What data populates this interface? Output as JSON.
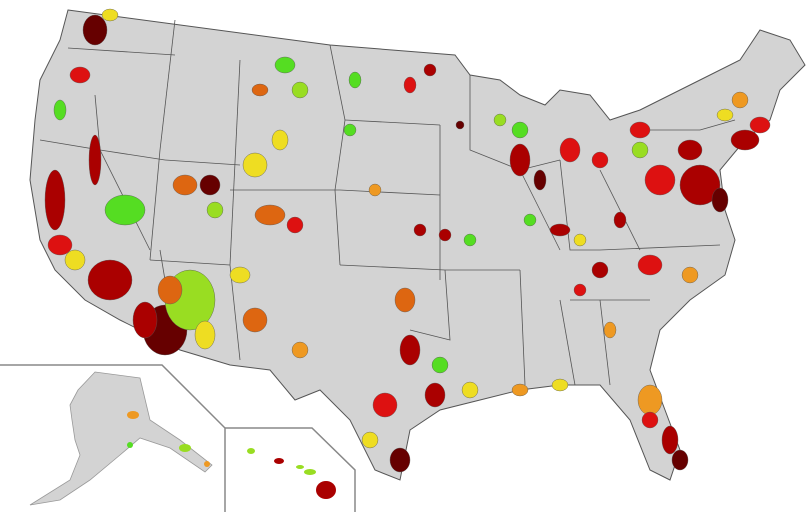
{
  "map": {
    "background": "#ffffff",
    "base_fill": "#d3d3d3",
    "border_color": "#555555",
    "inset_line_color": "#888888",
    "palette": {
      "light_green": "#99dd22",
      "green": "#55dd22",
      "yellow": "#eedd22",
      "orange": "#ee9922",
      "dark_orange": "#dd6611",
      "red": "#dd1111",
      "dark_red": "#aa0000",
      "darkest_red": "#660000"
    },
    "insets": [
      "Alaska",
      "Hawaii"
    ]
  }
}
